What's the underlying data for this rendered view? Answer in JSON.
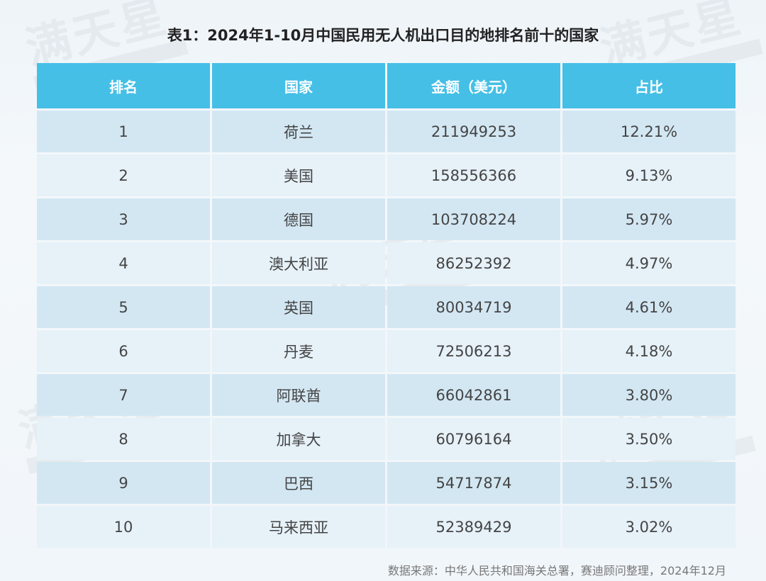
{
  "title": "表1：2024年1-10月中国民用无人机出口目的地排名前十的国家",
  "table": {
    "headers": [
      "排名",
      "国家",
      "金额（美元）",
      "占比"
    ],
    "rows": [
      {
        "rank": "1",
        "country": "荷兰",
        "amount": "211949253",
        "share": "12.21%"
      },
      {
        "rank": "2",
        "country": "美国",
        "amount": "158556366",
        "share": "9.13%"
      },
      {
        "rank": "3",
        "country": "德国",
        "amount": "103708224",
        "share": "5.97%"
      },
      {
        "rank": "4",
        "country": "澳大利亚",
        "amount": "86252392",
        "share": "4.97%"
      },
      {
        "rank": "5",
        "country": "英国",
        "amount": "80034719",
        "share": "4.61%"
      },
      {
        "rank": "6",
        "country": "丹麦",
        "amount": "72506213",
        "share": "4.18%"
      },
      {
        "rank": "7",
        "country": "阿联酋",
        "amount": "66042861",
        "share": "3.80%"
      },
      {
        "rank": "8",
        "country": "加拿大",
        "amount": "60796164",
        "share": "3.50%"
      },
      {
        "rank": "9",
        "country": "巴西",
        "amount": "54717874",
        "share": "3.15%"
      },
      {
        "rank": "10",
        "country": "马来西亚",
        "amount": "52389429",
        "share": "3.02%"
      }
    ]
  },
  "source": "数据来源：中华人民共和国海关总署，赛迪顾问整理，2024年12月",
  "watermark": "满天星",
  "colors": {
    "header_bg": "#45bfe6",
    "row_odd": "#d3e7f3",
    "row_even": "#e6f1f8"
  }
}
